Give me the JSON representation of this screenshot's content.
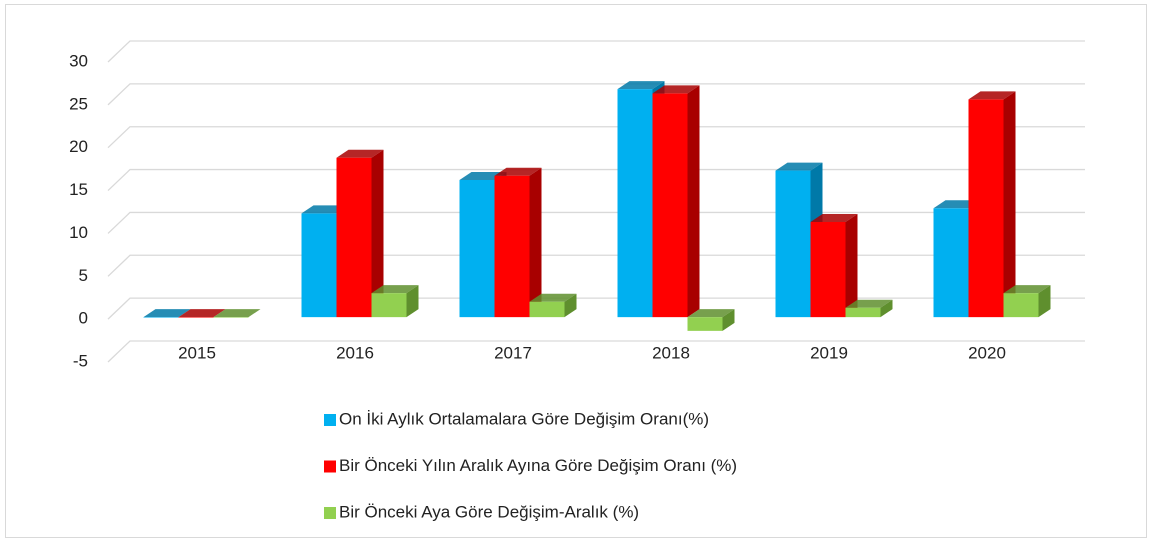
{
  "chart_data": {
    "type": "bar3d",
    "categories": [
      "2015",
      "2016",
      "2017",
      "2018",
      "2019",
      "2020"
    ],
    "series": [
      {
        "name": "On İki Aylık Ortalamalara Göre Değişim Oranı(%)",
        "color": "#00b0f0",
        "side_color": "#0079a8",
        "values": [
          0,
          12.1,
          16.0,
          26.6,
          17.1,
          12.7
        ]
      },
      {
        "name": "Bir Önceki Yılın Aralık Ayına Göre Değişim Oranı (%)",
        "color": "#ff0000",
        "side_color": "#a80000",
        "values": [
          0,
          18.6,
          16.5,
          26.1,
          11.1,
          25.4
        ]
      },
      {
        "name": "Bir Önceki Aya Göre Değişim-Aralık  (%)",
        "color": "#92d050",
        "side_color": "#5f8f2e",
        "values": [
          0,
          2.8,
          1.8,
          -1.6,
          1.1,
          2.8
        ]
      }
    ],
    "ylim": [
      -5,
      30
    ],
    "yticks": [
      -5,
      0,
      5,
      10,
      15,
      20,
      25,
      30
    ],
    "grid": true
  }
}
